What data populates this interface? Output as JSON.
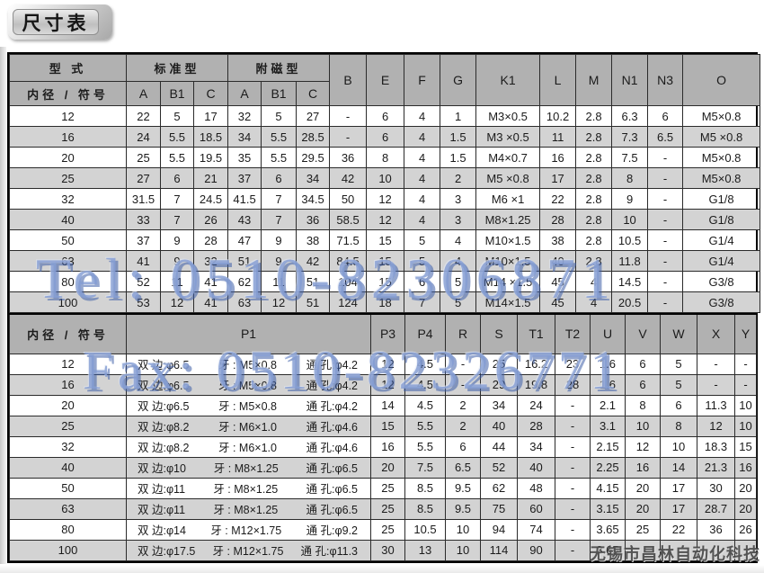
{
  "page": {
    "title": "尺寸表"
  },
  "watermarks": {
    "tel": "Tel: 0510-82306871",
    "fax": "Fax: 0510-82326771",
    "company": "无锡市昌林自动化科技"
  },
  "table1": {
    "headers": {
      "type": "型 式",
      "bore": "内径 / 符号",
      "standard": "标准型",
      "magnet": "附磁型",
      "sub": [
        "A",
        "B1",
        "C"
      ],
      "cols": [
        "B",
        "E",
        "F",
        "G",
        "K1",
        "L",
        "M",
        "N1",
        "N3",
        "O"
      ]
    },
    "rows": [
      {
        "bore": "12",
        "std": [
          "22",
          "5",
          "17"
        ],
        "mag": [
          "32",
          "5",
          "27"
        ],
        "vals": [
          "-",
          "6",
          "4",
          "1",
          "M3×0.5",
          "10.2",
          "2.8",
          "6.3",
          "6",
          "M5×0.8"
        ]
      },
      {
        "bore": "16",
        "std": [
          "24",
          "5.5",
          "18.5"
        ],
        "mag": [
          "34",
          "5.5",
          "28.5"
        ],
        "vals": [
          "-",
          "6",
          "4",
          "1.5",
          "M3 ×0.5",
          "11",
          "2.8",
          "7.3",
          "6.5",
          "M5 ×0.8"
        ]
      },
      {
        "bore": "20",
        "std": [
          "25",
          "5.5",
          "19.5"
        ],
        "mag": [
          "35",
          "5.5",
          "29.5"
        ],
        "vals": [
          "36",
          "8",
          "4",
          "1.5",
          "M4×0.7",
          "16",
          "2.8",
          "7.5",
          "-",
          "M5×0.8"
        ]
      },
      {
        "bore": "25",
        "std": [
          "27",
          "6",
          "21"
        ],
        "mag": [
          "37",
          "6",
          "34"
        ],
        "vals": [
          "42",
          "10",
          "4",
          "2",
          "M5 ×0.8",
          "17",
          "2.8",
          "8",
          "-",
          "M5×0.8"
        ]
      },
      {
        "bore": "32",
        "std": [
          "31.5",
          "7",
          "24.5"
        ],
        "mag": [
          "41.5",
          "7",
          "34.5"
        ],
        "vals": [
          "50",
          "12",
          "4",
          "3",
          "M6 ×1",
          "22",
          "2.8",
          "9",
          "-",
          "G1/8"
        ]
      },
      {
        "bore": "40",
        "std": [
          "33",
          "7",
          "26"
        ],
        "mag": [
          "43",
          "7",
          "36"
        ],
        "vals": [
          "58.5",
          "12",
          "4",
          "3",
          "M8×1.25",
          "28",
          "2.8",
          "10",
          "-",
          "G1/8"
        ]
      },
      {
        "bore": "50",
        "std": [
          "37",
          "9",
          "28"
        ],
        "mag": [
          "47",
          "9",
          "38"
        ],
        "vals": [
          "71.5",
          "15",
          "5",
          "4",
          "M10×1.5",
          "38",
          "2.8",
          "10.5",
          "-",
          "G1/4"
        ]
      },
      {
        "bore": "63",
        "std": [
          "41",
          "9",
          "32"
        ],
        "mag": [
          "51",
          "9",
          "42"
        ],
        "vals": [
          "84.5",
          "15",
          "5",
          "4",
          "M10×1.5",
          "40",
          "2.8",
          "11.8",
          "-",
          "G1/4"
        ]
      },
      {
        "bore": "80",
        "std": [
          "52",
          "11",
          "41"
        ],
        "mag": [
          "62",
          "11",
          "51"
        ],
        "vals": [
          "104",
          "15",
          "6",
          "5",
          "M14 ×1.5",
          "45",
          "4",
          "14.5",
          "-",
          "G3/8"
        ]
      },
      {
        "bore": "100",
        "std": [
          "53",
          "12",
          "41"
        ],
        "mag": [
          "63",
          "12",
          "51"
        ],
        "vals": [
          "124",
          "18",
          "7",
          "5",
          "M14×1.5",
          "45",
          "4",
          "20.5",
          "-",
          "G3/8"
        ]
      }
    ]
  },
  "table2": {
    "headers": {
      "bore": "内径 / 符号",
      "p1": "P1",
      "cols": [
        "P3",
        "P4",
        "R",
        "S",
        "T1",
        "T2",
        "U",
        "V",
        "W",
        "X",
        "Y"
      ]
    },
    "rows": [
      {
        "bore": "12",
        "p1": [
          "双 边:φ6.5",
          "牙 : M5×0.8",
          "通 孔:φ4.2"
        ],
        "vals": [
          "12",
          "4.5",
          "-",
          "25",
          "16.2",
          "23",
          "1.6",
          "6",
          "5",
          "-",
          "-"
        ]
      },
      {
        "bore": "16",
        "p1": [
          "双 边:φ6.5",
          "牙 : M5×0.8",
          "通 孔:φ4.2"
        ],
        "vals": [
          "12",
          "4.5",
          "-",
          "29",
          "19.8",
          "28",
          "1.6",
          "6",
          "5",
          "-",
          "-"
        ]
      },
      {
        "bore": "20",
        "p1": [
          "双 边:φ6.5",
          "牙 : M5×0.8",
          "通 孔:φ4.2"
        ],
        "vals": [
          "14",
          "4.5",
          "2",
          "34",
          "24",
          "-",
          "2.1",
          "8",
          "6",
          "11.3",
          "10"
        ]
      },
      {
        "bore": "25",
        "p1": [
          "双 边:φ8.2",
          "牙 : M6×1.0",
          "通 孔:φ4.6"
        ],
        "vals": [
          "15",
          "5.5",
          "2",
          "40",
          "28",
          "-",
          "3.1",
          "10",
          "8",
          "12",
          "10"
        ]
      },
      {
        "bore": "32",
        "p1": [
          "双 边:φ8.2",
          "牙 : M6×1.0",
          "通 孔:φ4.6"
        ],
        "vals": [
          "16",
          "5.5",
          "6",
          "44",
          "34",
          "-",
          "2.15",
          "12",
          "10",
          "18.3",
          "15"
        ]
      },
      {
        "bore": "40",
        "p1": [
          "双 边:φ10",
          "牙 : M8×1.25",
          "通 孔:φ6.5"
        ],
        "vals": [
          "20",
          "7.5",
          "6.5",
          "52",
          "40",
          "-",
          "2.25",
          "16",
          "14",
          "21.3",
          "16"
        ]
      },
      {
        "bore": "50",
        "p1": [
          "双 边:φ11",
          "牙 : M8×1.25",
          "通 孔:φ6.5"
        ],
        "vals": [
          "25",
          "8.5",
          "9.5",
          "62",
          "48",
          "-",
          "4.15",
          "20",
          "17",
          "30",
          "20"
        ]
      },
      {
        "bore": "63",
        "p1": [
          "双 边:φ11",
          "牙 : M8×1.25",
          "通 孔:φ6.5"
        ],
        "vals": [
          "25",
          "8.5",
          "9.5",
          "75",
          "60",
          "-",
          "3.15",
          "20",
          "17",
          "28.7",
          "20"
        ]
      },
      {
        "bore": "80",
        "p1": [
          "双 边:φ14",
          "牙 : M12×1.75",
          "通 孔:φ9.2"
        ],
        "vals": [
          "25",
          "10.5",
          "10",
          "94",
          "74",
          "-",
          "3.65",
          "25",
          "22",
          "36",
          "26"
        ]
      },
      {
        "bore": "100",
        "p1": [
          "双 边:φ17.5",
          "牙 : M12×1.75",
          "通 孔:φ11.3"
        ],
        "vals": [
          "30",
          "13",
          "10",
          "114",
          "90",
          "-",
          "3.65",
          "",
          "",
          "",
          ""
        ]
      }
    ]
  }
}
